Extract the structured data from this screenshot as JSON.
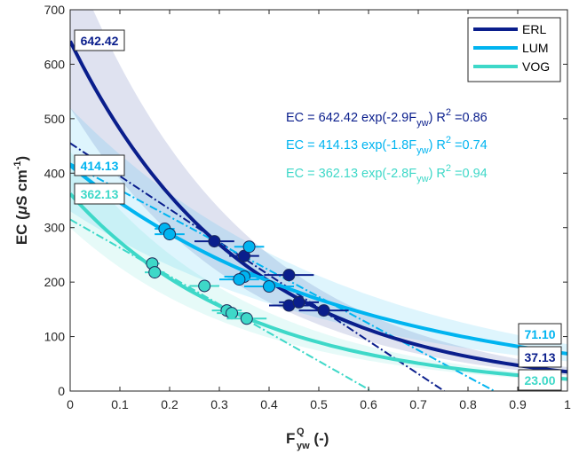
{
  "chart_data": {
    "type": "scatter",
    "title": "",
    "xlabel": {
      "main": "F",
      "sup": "Q",
      "sub": "yw",
      "suffix": " (-)"
    },
    "ylabel": {
      "main": "EC (",
      "mu": "μ",
      "rest": "S cm",
      "sup": "-1",
      "close": ")"
    },
    "xlim": [
      0,
      1
    ],
    "ylim": [
      0,
      700
    ],
    "xticks": [
      0,
      0.1,
      0.2,
      0.3,
      0.4,
      0.5,
      0.6,
      0.7,
      0.8,
      0.9,
      1
    ],
    "xtick_labels": [
      "0",
      "0.1",
      "0.2",
      "0.3",
      "0.4",
      "0.5",
      "0.6",
      "0.7",
      "0.8",
      "0.9",
      "1"
    ],
    "yticks": [
      0,
      100,
      200,
      300,
      400,
      500,
      600,
      700
    ],
    "ytick_labels": [
      "0",
      "100",
      "200",
      "300",
      "400",
      "500",
      "600",
      "700"
    ],
    "grid": false,
    "legend_position": "top-right",
    "series": [
      {
        "name": "ERL",
        "color": "#0a1e8c",
        "a": 642.42,
        "b": 2.9,
        "equation": {
          "lhs": "EC = 642.42 exp(-2.9F",
          "sub": "yw",
          "mid": ")  R",
          "sup": "2",
          "rhs": " =0.86"
        },
        "intercept_label": "642.42",
        "end_label": "37.13",
        "band_lower": {
          "a": 520,
          "b": 2.9
        },
        "band_upper": {
          "a": 800,
          "b": 2.9
        },
        "linear_fit": {
          "intercept": 455,
          "slope": -605
        },
        "points": [
          {
            "x": 0.29,
            "y": 275,
            "xerr": 0.04
          },
          {
            "x": 0.35,
            "y": 248,
            "xerr": 0.03
          },
          {
            "x": 0.44,
            "y": 213,
            "xerr": 0.05
          },
          {
            "x": 0.44,
            "y": 157,
            "xerr": 0.04
          },
          {
            "x": 0.46,
            "y": 163,
            "xerr": 0.04
          },
          {
            "x": 0.51,
            "y": 148,
            "xerr": 0.05
          }
        ]
      },
      {
        "name": "LUM",
        "color": "#00b4f0",
        "a": 414.13,
        "b": 1.8,
        "equation": {
          "lhs": "EC = 414.13 exp(-1.8F",
          "sub": "yw",
          "mid": ")  R",
          "sup": "2",
          "rhs": " =0.74"
        },
        "intercept_label": "414.13",
        "end_label": "71.10",
        "band_lower": {
          "a": 330,
          "b": 1.8
        },
        "band_upper": {
          "a": 520,
          "b": 1.8
        },
        "linear_fit": {
          "intercept": 418,
          "slope": -490
        },
        "points": [
          {
            "x": 0.19,
            "y": 298,
            "xerr": 0.02
          },
          {
            "x": 0.2,
            "y": 288,
            "xerr": 0.03
          },
          {
            "x": 0.36,
            "y": 265,
            "xerr": 0.03
          },
          {
            "x": 0.35,
            "y": 210,
            "xerr": 0.04
          },
          {
            "x": 0.34,
            "y": 205,
            "xerr": 0.04
          },
          {
            "x": 0.4,
            "y": 192,
            "xerr": 0.05
          }
        ]
      },
      {
        "name": "VOG",
        "color": "#3ed8c8",
        "a": 362.13,
        "b": 2.8,
        "equation": {
          "lhs": "EC = 362.13 exp(-2.8F",
          "sub": "yw",
          "mid": ")  R",
          "sup": "2",
          "rhs": " =0.94"
        },
        "intercept_label": "362.13",
        "end_label": "23.00",
        "band_lower": {
          "a": 300,
          "b": 2.8
        },
        "band_upper": {
          "a": 440,
          "b": 2.8
        },
        "linear_fit": {
          "intercept": 315,
          "slope": -520
        },
        "points": [
          {
            "x": 0.165,
            "y": 234,
            "xerr": 0.015
          },
          {
            "x": 0.17,
            "y": 218,
            "xerr": 0.02
          },
          {
            "x": 0.27,
            "y": 193,
            "xerr": 0.03
          },
          {
            "x": 0.315,
            "y": 148,
            "xerr": 0.03
          },
          {
            "x": 0.325,
            "y": 143,
            "xerr": 0.03
          },
          {
            "x": 0.355,
            "y": 133,
            "xerr": 0.04
          }
        ]
      }
    ]
  }
}
